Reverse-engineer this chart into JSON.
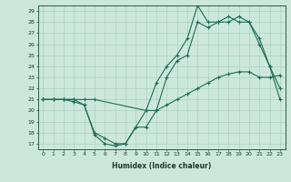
{
  "bg_color": "#cce8dd",
  "line_color": "#1e6b55",
  "xlabel": "Humidex (Indice chaleur)",
  "xlim": [
    -0.5,
    23.5
  ],
  "ylim": [
    16.5,
    29.5
  ],
  "yticks": [
    17,
    18,
    19,
    20,
    21,
    22,
    23,
    24,
    25,
    26,
    27,
    28,
    29
  ],
  "xticks": [
    0,
    1,
    2,
    3,
    4,
    5,
    6,
    7,
    8,
    9,
    10,
    11,
    12,
    13,
    14,
    15,
    16,
    17,
    18,
    19,
    20,
    21,
    22,
    23
  ],
  "line1_x": [
    0,
    1,
    2,
    3,
    4,
    5,
    10,
    11,
    12,
    13,
    14,
    15,
    16,
    17,
    18,
    19,
    20,
    21,
    22,
    23
  ],
  "line1_y": [
    21.0,
    21.0,
    21.0,
    21.0,
    21.0,
    21.0,
    20.0,
    20.0,
    20.5,
    21.0,
    21.5,
    22.0,
    22.5,
    23.0,
    23.3,
    23.5,
    23.5,
    23.0,
    23.0,
    23.2
  ],
  "line2_x": [
    0,
    1,
    2,
    3,
    4,
    5,
    6,
    7,
    8,
    9,
    10,
    11,
    12,
    13,
    14,
    15,
    16,
    17,
    18,
    19,
    20,
    21,
    22,
    23
  ],
  "line2_y": [
    21.0,
    21.0,
    21.0,
    20.8,
    20.5,
    18.0,
    17.5,
    17.0,
    17.0,
    18.5,
    18.5,
    20.0,
    23.0,
    24.5,
    25.0,
    28.0,
    27.5,
    28.0,
    28.5,
    28.0,
    28.0,
    26.5,
    24.0,
    21.0
  ],
  "line3_x": [
    0,
    1,
    2,
    3,
    4,
    5,
    6,
    7,
    8,
    9,
    10,
    11,
    12,
    13,
    14,
    15,
    16,
    17,
    18,
    19,
    20,
    21,
    22,
    23
  ],
  "line3_y": [
    21.0,
    21.0,
    21.0,
    21.0,
    20.5,
    17.8,
    17.0,
    16.8,
    17.0,
    18.5,
    20.0,
    22.5,
    24.0,
    25.0,
    26.5,
    29.5,
    28.0,
    28.0,
    28.0,
    28.5,
    28.0,
    26.0,
    24.0,
    22.0
  ],
  "figwidth": 3.2,
  "figheight": 2.0,
  "dpi": 100
}
